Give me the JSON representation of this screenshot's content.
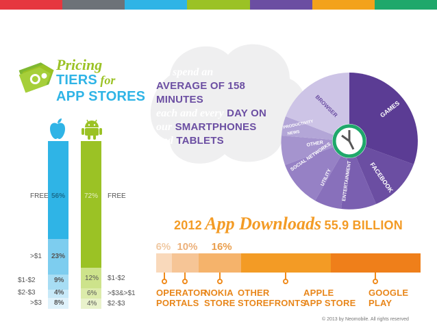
{
  "top_colors": [
    "#e6373f",
    "#6d7278",
    "#2fb4e6",
    "#9bc225",
    "#6b4ea2",
    "#f3a21b",
    "#1fa86b"
  ],
  "pricing_title": {
    "line1": "Pricing",
    "line2_a": "TIERS",
    "line2_b": "for",
    "line3": "APP STORES"
  },
  "apple_tiers": [
    {
      "label": "FREE",
      "pct": "56%"
    },
    {
      "label": ">$1",
      "pct": "23%"
    },
    {
      "label": "$1-$2",
      "pct": "9%"
    },
    {
      "label": "$2-$3",
      "pct": "4%"
    },
    {
      "label": ">$3",
      "pct": "8%"
    }
  ],
  "android_tiers": [
    {
      "label": "FREE",
      "pct": "72%"
    },
    {
      "label": "$1-$2",
      "pct": "12%"
    },
    {
      "label": ">$3&>$1",
      "pct": "6%"
    },
    {
      "label": "$2-$3",
      "pct": "4%"
    }
  ],
  "minutes": {
    "l1": "We spend an",
    "l2": "AVERAGE OF 158 MINUTES",
    "l3a": "each and every",
    "l3b": "DAY ON",
    "l4a": "our",
    "l4b": "SMARTPHONES",
    "l5a": "and",
    "l5b": "TABLETS"
  },
  "pie_labels": {
    "games": "GAMES",
    "facebook": "FACEBOOK",
    "entertainment": "ENTERTAINMENT",
    "utility": "UTILITY",
    "social": "SOCIAL NETWORKS",
    "other": "OTHER",
    "productivity": "PRODUCTIVITY",
    "news": "NEWS",
    "browser": "BROWSER"
  },
  "downloads": {
    "year": "2012",
    "title": "App Downloads",
    "total": "55.9 BILLION",
    "segments": [
      {
        "pct": "6%",
        "value": 6,
        "color": "#f9d9bb",
        "text_color": "#f0c9a3",
        "label_1": "OPERATOR",
        "label_2": "PORTALS"
      },
      {
        "pct": "10%",
        "value": 10,
        "color": "#f6c596",
        "text_color": "#ecb07a",
        "label_1": "NOKIA",
        "label_2": "STORE"
      },
      {
        "pct": "16%",
        "value": 16,
        "color": "#f5b36b",
        "text_color": "#ea9e4c",
        "label_1": "OTHER",
        "label_2": "STOREFRONTS"
      },
      {
        "pct": "34%",
        "value": 34,
        "color": "#f39b25",
        "text_color": "#fff",
        "label_1": "APPLE",
        "label_2": "APP STORE"
      },
      {
        "pct": "34%",
        "value": 34,
        "color": "#ef7f1a",
        "text_color": "#fff",
        "label_1": "GOOGLE",
        "label_2": "PLAY"
      }
    ]
  },
  "copyright": "© 2013 by Neomobile. All rights reserved"
}
